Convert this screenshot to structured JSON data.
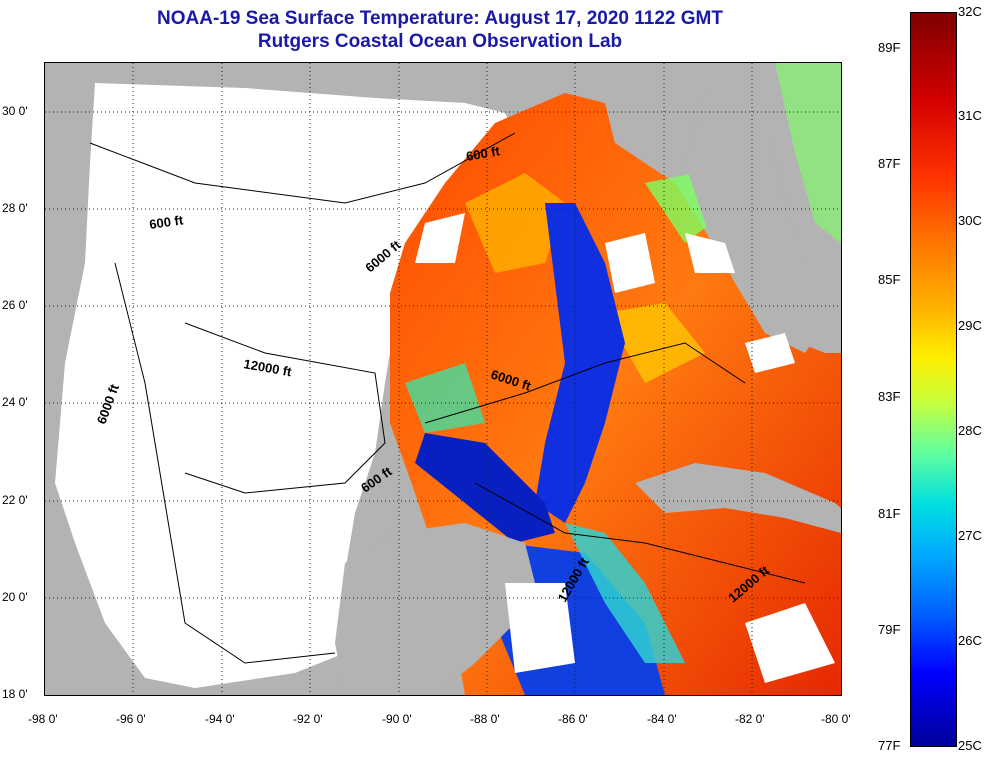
{
  "title": {
    "line1": "NOAA-19 Sea Surface Temperature:  August 17, 2020 1122 GMT",
    "line2": "Rutgers Coastal Ocean Observation Lab"
  },
  "colors": {
    "land": "#b3b3b3",
    "cloud": "#ffffff",
    "title": "#1a1aa6"
  },
  "axes": {
    "lon_range": [
      -98,
      -80
    ],
    "lat_range": [
      18,
      31
    ],
    "lon_ticks": [
      "-98 0'",
      "-96 0'",
      "-94 0'",
      "-92 0'",
      "-90 0'",
      "-88 0'",
      "-86 0'",
      "-84 0'",
      "-82 0'",
      "-80 0'"
    ],
    "lat_ticks": [
      "30 0'",
      "28 0'",
      "26 0'",
      "24 0'",
      "22 0'",
      "20 0'",
      "18 0'"
    ]
  },
  "contour_labels": [
    {
      "text": "600 ft",
      "id": "c600a"
    },
    {
      "text": "600 ft",
      "id": "c600b"
    },
    {
      "text": "6000 ft",
      "id": "c6000a"
    },
    {
      "text": "12000 ft",
      "id": "c12000a"
    },
    {
      "text": "6000 ft",
      "id": "c6000b"
    },
    {
      "text": "6000 ft",
      "id": "c6000c"
    },
    {
      "text": "600 ft",
      "id": "c600c"
    },
    {
      "text": "12000 ft",
      "id": "c12000b"
    },
    {
      "text": "12000 ft",
      "id": "c12000c"
    }
  ],
  "colorbar": {
    "celsius": [
      "32C",
      "31C",
      "30C",
      "29C",
      "28C",
      "27C",
      "26C",
      "25C"
    ],
    "fahrenheit": [
      "89F",
      "87F",
      "85F",
      "83F",
      "81F",
      "79F",
      "77F"
    ]
  }
}
